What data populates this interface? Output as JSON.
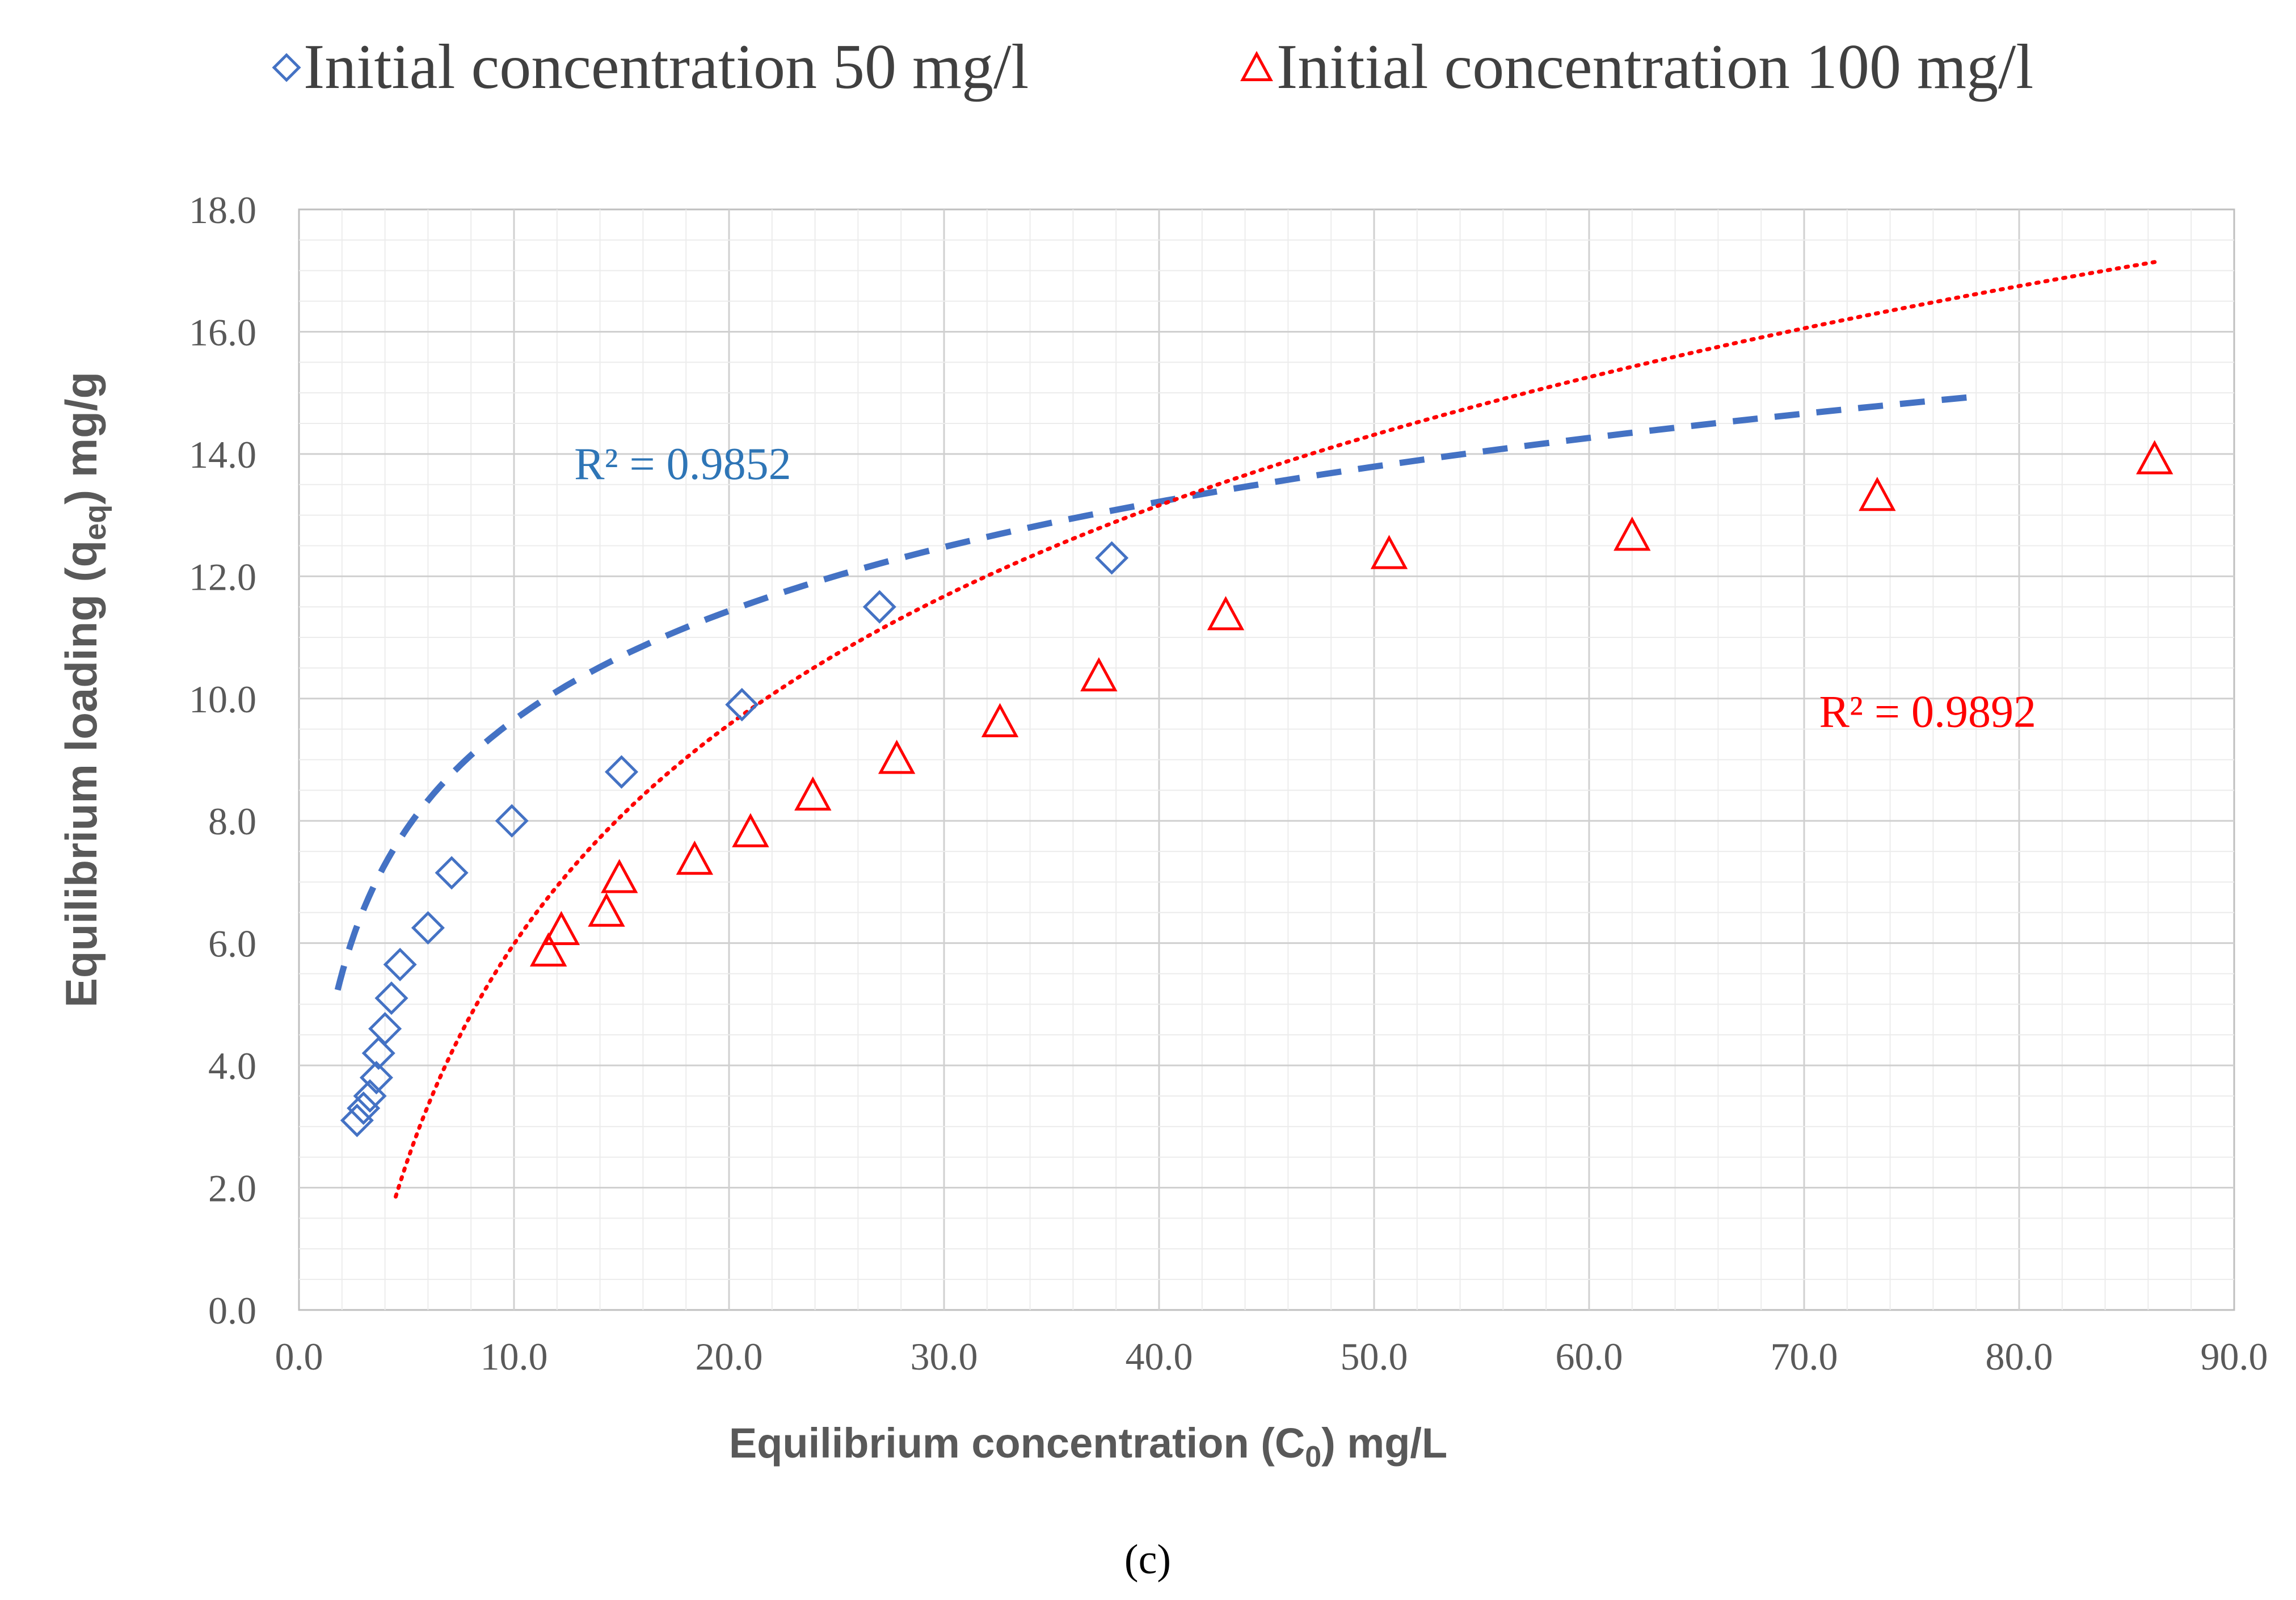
{
  "chart_data": {
    "type": "scatter",
    "title": "",
    "panel_label": "(c)",
    "xlabel": {
      "main": "Equilibrium concentration  (C",
      "sub": "0",
      "tail": ") mg/L"
    },
    "ylabel": {
      "main": "Equilibrium loading (q",
      "sub": "eq",
      "tail": ") mg/g"
    },
    "xlim": [
      0,
      90
    ],
    "ylim": [
      0,
      18
    ],
    "x_ticks": [
      "0.0",
      "10.0",
      "20.0",
      "30.0",
      "40.0",
      "50.0",
      "60.0",
      "70.0",
      "80.0",
      "90.0"
    ],
    "y_ticks": [
      "0.0",
      "2.0",
      "4.0",
      "6.0",
      "8.0",
      "10.0",
      "12.0",
      "14.0",
      "16.0",
      "18.0"
    ],
    "x_tick_values": [
      0,
      10,
      20,
      30,
      40,
      50,
      60,
      70,
      80,
      90
    ],
    "y_tick_values": [
      0,
      2,
      4,
      6,
      8,
      10,
      12,
      14,
      16,
      18
    ],
    "grid": true,
    "legend_position": "top",
    "series": [
      {
        "name": "Initial concentration 50 mg/l",
        "marker": "diamond",
        "color": "#4472C4",
        "points": [
          {
            "x": 2.7,
            "y": 3.1
          },
          {
            "x": 3.0,
            "y": 3.3
          },
          {
            "x": 3.3,
            "y": 3.5
          },
          {
            "x": 3.6,
            "y": 3.8
          },
          {
            "x": 3.7,
            "y": 4.2
          },
          {
            "x": 4.0,
            "y": 4.6
          },
          {
            "x": 4.3,
            "y": 5.1
          },
          {
            "x": 4.7,
            "y": 5.65
          },
          {
            "x": 6.0,
            "y": 6.25
          },
          {
            "x": 7.1,
            "y": 7.15
          },
          {
            "x": 9.9,
            "y": 8.0
          },
          {
            "x": 15.0,
            "y": 8.8
          },
          {
            "x": 20.6,
            "y": 9.9
          },
          {
            "x": 27.0,
            "y": 11.5
          },
          {
            "x": 37.8,
            "y": 12.3
          }
        ],
        "trendline": {
          "style": "dashed",
          "fit": "log",
          "a": 3.72,
          "b": 2.575,
          "x_start": 1.8,
          "x_end": 78
        },
        "r_squared_label": "R² = 0.9852"
      },
      {
        "name": "Initial concentration 100 mg/l",
        "marker": "triangle",
        "color": "#FF0000",
        "points": [
          {
            "x": 11.6,
            "y": 5.85
          },
          {
            "x": 12.2,
            "y": 6.2
          },
          {
            "x": 14.3,
            "y": 6.5
          },
          {
            "x": 14.9,
            "y": 7.05
          },
          {
            "x": 18.4,
            "y": 7.35
          },
          {
            "x": 21.0,
            "y": 7.8
          },
          {
            "x": 23.9,
            "y": 8.4
          },
          {
            "x": 27.8,
            "y": 9.0
          },
          {
            "x": 32.6,
            "y": 9.6
          },
          {
            "x": 37.2,
            "y": 10.35
          },
          {
            "x": 43.1,
            "y": 11.35
          },
          {
            "x": 50.7,
            "y": 12.35
          },
          {
            "x": 62.0,
            "y": 12.65
          },
          {
            "x": 73.4,
            "y": 13.3
          },
          {
            "x": 86.3,
            "y": 13.9
          }
        ],
        "trendline": {
          "style": "dotted",
          "fit": "log",
          "a": -5.93,
          "b": 5.175,
          "x_start": 4.5,
          "x_end": 86.3
        },
        "r_squared_label": "R² = 0.9892"
      }
    ],
    "annotations": [
      {
        "text": "R² = 0.9852",
        "x": 12.8,
        "y": 13.85,
        "color": "#2E75B6"
      },
      {
        "text": "R² = 0.9892",
        "x": 70.7,
        "y": 9.8,
        "color": "#FF0000"
      }
    ]
  }
}
